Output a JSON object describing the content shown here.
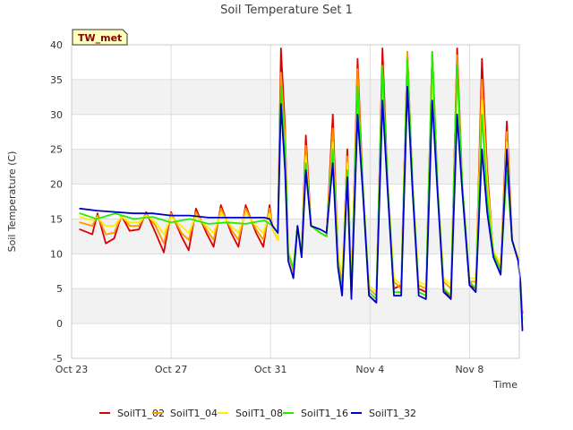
{
  "chart_data": {
    "type": "line",
    "title": "Soil Temperature Set 1",
    "xlabel": "Time",
    "ylabel": "Soil Temperature (C)",
    "ylim": [
      -5,
      40
    ],
    "yticks": [
      -5,
      0,
      5,
      10,
      15,
      20,
      25,
      30,
      35,
      40
    ],
    "xlim": [
      "2023-10-23",
      "2023-11-10"
    ],
    "xticks": [
      {
        "date": "2023-10-23",
        "label": "Oct 23"
      },
      {
        "date": "2023-10-27",
        "label": "Oct 27"
      },
      {
        "date": "2023-10-31",
        "label": "Oct 31"
      },
      {
        "date": "2023-11-04",
        "label": "Nov 4"
      },
      {
        "date": "2023-11-08",
        "label": "Nov 8"
      }
    ],
    "grid": true,
    "banded_background": true,
    "legend_position": "bottom",
    "annotation": "TW_met",
    "series": [
      {
        "name": "SoilT1_02",
        "color": "#dd0000",
        "x": [
          "2023-10-23T08:00",
          "2023-10-23T20:00",
          "2023-10-24T01:00",
          "2023-10-24T09:00",
          "2023-10-24T17:00",
          "2023-10-25T00:00",
          "2023-10-25T08:00",
          "2023-10-25T17:00",
          "2023-10-26T00:00",
          "2023-10-26T09:00",
          "2023-10-26T17:00",
          "2023-10-27T00:00",
          "2023-10-27T10:00",
          "2023-10-27T17:00",
          "2023-10-28T00:00",
          "2023-10-28T10:00",
          "2023-10-28T17:00",
          "2023-10-29T00:00",
          "2023-10-29T10:00",
          "2023-10-29T17:00",
          "2023-10-30T00:00",
          "2023-10-30T10:00",
          "2023-10-30T17:00",
          "2023-10-30T23:00",
          "2023-10-31T02:00",
          "2023-10-31T07:00",
          "2023-10-31T10:00",
          "2023-10-31T14:00",
          "2023-10-31T17:00",
          "2023-10-31T22:00",
          "2023-11-01T02:00",
          "2023-11-01T06:00",
          "2023-11-01T10:00",
          "2023-11-01T15:00",
          "2023-11-02T00:00",
          "2023-11-02T06:00",
          "2023-11-02T12:00",
          "2023-11-02T17:00",
          "2023-11-02T21:00",
          "2023-11-03T02:00",
          "2023-11-03T06:00",
          "2023-11-03T12:00",
          "2023-11-03T17:00",
          "2023-11-03T23:00",
          "2023-11-04T06:00",
          "2023-11-04T12:00",
          "2023-11-04T17:00",
          "2023-11-04T23:00",
          "2023-11-05T06:00",
          "2023-11-05T12:00",
          "2023-11-05T17:00",
          "2023-11-05T23:00",
          "2023-11-06T06:00",
          "2023-11-06T12:00",
          "2023-11-06T17:00",
          "2023-11-06T23:00",
          "2023-11-07T06:00",
          "2023-11-07T12:00",
          "2023-11-07T17:00",
          "2023-11-08T00:00",
          "2023-11-08T06:00",
          "2023-11-08T12:00",
          "2023-11-08T17:00",
          "2023-11-08T23:00",
          "2023-11-09T06:00",
          "2023-11-09T12:00",
          "2023-11-09T17:00",
          "2023-11-09T23:00",
          "2023-11-10T01:00",
          "2023-11-10T03:00"
        ],
        "y": [
          13.5,
          12.8,
          15.8,
          11.5,
          12.2,
          15.5,
          13.3,
          13.5,
          16.0,
          13.0,
          10.2,
          16.0,
          12.5,
          10.5,
          16.5,
          13.0,
          11.0,
          17.0,
          13.0,
          11.0,
          17.0,
          13.0,
          11.0,
          17.0,
          13.5,
          12.0,
          39.5,
          28.0,
          10.0,
          7.5,
          14.0,
          10.0,
          27.0,
          14.0,
          13.0,
          12.5,
          30.0,
          10.0,
          5.0,
          25.0,
          4.0,
          38.0,
          20.0,
          4.0,
          3.0,
          39.5,
          20.0,
          5.0,
          5.5,
          39.0,
          20.0,
          5.0,
          4.5,
          39.0,
          20.0,
          5.0,
          3.5,
          39.5,
          20.0,
          5.5,
          5.0,
          38.0,
          22.0,
          10.0,
          8.0,
          29.0,
          12.0,
          9.0,
          6.0,
          1.5
        ]
      },
      {
        "name": "SoilT1_04",
        "color": "#ff9900",
        "x": [
          "2023-10-23T08:00",
          "2023-10-23T20:00",
          "2023-10-24T01:00",
          "2023-10-24T09:00",
          "2023-10-24T17:00",
          "2023-10-25T00:00",
          "2023-10-25T08:00",
          "2023-10-25T17:00",
          "2023-10-26T00:00",
          "2023-10-26T09:00",
          "2023-10-26T17:00",
          "2023-10-27T00:00",
          "2023-10-27T10:00",
          "2023-10-27T17:00",
          "2023-10-28T00:00",
          "2023-10-28T10:00",
          "2023-10-28T17:00",
          "2023-10-29T00:00",
          "2023-10-29T10:00",
          "2023-10-29T17:00",
          "2023-10-30T00:00",
          "2023-10-30T10:00",
          "2023-10-30T17:00",
          "2023-10-30T23:00",
          "2023-10-31T02:00",
          "2023-10-31T07:00",
          "2023-10-31T10:00",
          "2023-10-31T14:00",
          "2023-10-31T17:00",
          "2023-10-31T22:00",
          "2023-11-01T02:00",
          "2023-11-01T06:00",
          "2023-11-01T10:00",
          "2023-11-01T15:00",
          "2023-11-02T00:00",
          "2023-11-02T06:00",
          "2023-11-02T12:00",
          "2023-11-02T17:00",
          "2023-11-02T21:00",
          "2023-11-03T02:00",
          "2023-11-03T06:00",
          "2023-11-03T12:00",
          "2023-11-03T17:00",
          "2023-11-03T23:00",
          "2023-11-04T06:00",
          "2023-11-04T12:00",
          "2023-11-04T17:00",
          "2023-11-04T23:00",
          "2023-11-05T06:00",
          "2023-11-05T12:00",
          "2023-11-05T17:00",
          "2023-11-05T23:00",
          "2023-11-06T06:00",
          "2023-11-06T12:00",
          "2023-11-06T17:00",
          "2023-11-06T23:00",
          "2023-11-07T06:00",
          "2023-11-07T12:00",
          "2023-11-07T17:00",
          "2023-11-08T00:00",
          "2023-11-08T06:00",
          "2023-11-08T12:00",
          "2023-11-08T17:00",
          "2023-11-08T23:00",
          "2023-11-09T06:00",
          "2023-11-09T12:00",
          "2023-11-09T17:00",
          "2023-11-09T23:00",
          "2023-11-10T01:00",
          "2023-11-10T03:00"
        ],
        "y": [
          14.5,
          14.0,
          15.5,
          12.8,
          13.0,
          15.5,
          14.0,
          14.0,
          15.8,
          14.0,
          11.5,
          15.8,
          13.0,
          12.0,
          16.0,
          13.5,
          12.0,
          16.5,
          13.5,
          12.0,
          16.5,
          13.5,
          12.0,
          16.5,
          13.5,
          12.0,
          36.0,
          27.0,
          10.0,
          7.5,
          14.0,
          10.0,
          25.5,
          14.0,
          13.0,
          12.5,
          28.0,
          10.0,
          6.0,
          24.0,
          5.0,
          36.5,
          20.0,
          5.0,
          4.0,
          37.0,
          20.0,
          6.0,
          5.0,
          39.0,
          20.0,
          5.5,
          5.0,
          39.0,
          20.0,
          6.0,
          5.0,
          38.5,
          20.0,
          6.0,
          6.0,
          35.0,
          21.0,
          10.0,
          8.0,
          27.5,
          12.0,
          9.0,
          6.0,
          2.0
        ]
      },
      {
        "name": "SoilT1_08",
        "color": "#ffee00",
        "x": [
          "2023-10-23T08:00",
          "2023-10-23T20:00",
          "2023-10-24T01:00",
          "2023-10-24T09:00",
          "2023-10-24T17:00",
          "2023-10-25T00:00",
          "2023-10-25T08:00",
          "2023-10-25T17:00",
          "2023-10-26T00:00",
          "2023-10-26T09:00",
          "2023-10-26T17:00",
          "2023-10-27T00:00",
          "2023-10-27T10:00",
          "2023-10-27T17:00",
          "2023-10-28T00:00",
          "2023-10-28T10:00",
          "2023-10-28T17:00",
          "2023-10-29T00:00",
          "2023-10-29T10:00",
          "2023-10-29T17:00",
          "2023-10-30T00:00",
          "2023-10-30T10:00",
          "2023-10-30T17:00",
          "2023-10-30T23:00",
          "2023-10-31T02:00",
          "2023-10-31T07:00",
          "2023-10-31T10:00",
          "2023-10-31T14:00",
          "2023-10-31T17:00",
          "2023-10-31T22:00",
          "2023-11-01T02:00",
          "2023-11-01T06:00",
          "2023-11-01T10:00",
          "2023-11-01T15:00",
          "2023-11-02T00:00",
          "2023-11-02T06:00",
          "2023-11-02T12:00",
          "2023-11-02T17:00",
          "2023-11-02T21:00",
          "2023-11-03T02:00",
          "2023-11-03T06:00",
          "2023-11-03T12:00",
          "2023-11-03T17:00",
          "2023-11-03T23:00",
          "2023-11-04T06:00",
          "2023-11-04T12:00",
          "2023-11-04T17:00",
          "2023-11-04T23:00",
          "2023-11-05T06:00",
          "2023-11-05T12:00",
          "2023-11-05T17:00",
          "2023-11-05T23:00",
          "2023-11-06T06:00",
          "2023-11-06T12:00",
          "2023-11-06T17:00",
          "2023-11-06T23:00",
          "2023-11-07T06:00",
          "2023-11-07T12:00",
          "2023-11-07T17:00",
          "2023-11-08T00:00",
          "2023-11-08T06:00",
          "2023-11-08T12:00",
          "2023-11-08T17:00",
          "2023-11-08T23:00",
          "2023-11-09T06:00",
          "2023-11-09T12:00",
          "2023-11-09T17:00",
          "2023-11-09T23:00",
          "2023-11-10T01:00",
          "2023-11-10T03:00"
        ],
        "y": [
          15.3,
          14.8,
          15.2,
          14.0,
          14.0,
          15.3,
          14.5,
          14.5,
          15.5,
          14.5,
          12.8,
          15.3,
          14.0,
          13.0,
          15.5,
          14.0,
          13.0,
          15.8,
          14.0,
          13.0,
          15.8,
          14.0,
          13.0,
          15.8,
          13.5,
          12.0,
          33.0,
          26.0,
          10.5,
          8.0,
          14.0,
          10.0,
          24.0,
          14.0,
          13.0,
          12.5,
          26.0,
          10.0,
          7.0,
          23.0,
          6.0,
          33.0,
          20.0,
          5.5,
          4.5,
          35.0,
          20.0,
          6.5,
          5.5,
          38.0,
          20.0,
          6.0,
          5.5,
          36.0,
          20.0,
          6.5,
          5.5,
          36.0,
          20.0,
          6.5,
          6.5,
          32.0,
          20.0,
          10.5,
          8.5,
          26.0,
          12.0,
          9.5,
          6.0,
          2.0
        ]
      },
      {
        "name": "SoilT1_16",
        "color": "#22ee00",
        "x": [
          "2023-10-23T08:00",
          "2023-10-24T00:00",
          "2023-10-24T18:00",
          "2023-10-25T12:00",
          "2023-10-26T06:00",
          "2023-10-27T00:00",
          "2023-10-27T18:00",
          "2023-10-28T12:00",
          "2023-10-29T06:00",
          "2023-10-30T00:00",
          "2023-10-30T18:00",
          "2023-10-30T23:00",
          "2023-10-31T02:00",
          "2023-10-31T07:00",
          "2023-10-31T10:00",
          "2023-10-31T14:00",
          "2023-10-31T17:00",
          "2023-10-31T22:00",
          "2023-11-01T02:00",
          "2023-11-01T06:00",
          "2023-11-01T10:00",
          "2023-11-01T15:00",
          "2023-11-02T00:00",
          "2023-11-02T06:00",
          "2023-11-02T12:00",
          "2023-11-02T17:00",
          "2023-11-02T21:00",
          "2023-11-03T02:00",
          "2023-11-03T06:00",
          "2023-11-03T12:00",
          "2023-11-03T17:00",
          "2023-11-03T23:00",
          "2023-11-04T06:00",
          "2023-11-04T12:00",
          "2023-11-04T17:00",
          "2023-11-04T23:00",
          "2023-11-05T06:00",
          "2023-11-05T12:00",
          "2023-11-05T17:00",
          "2023-11-05T23:00",
          "2023-11-06T06:00",
          "2023-11-06T12:00",
          "2023-11-06T17:00",
          "2023-11-06T23:00",
          "2023-11-07T06:00",
          "2023-11-07T12:00",
          "2023-11-07T17:00",
          "2023-11-08T00:00",
          "2023-11-08T06:00",
          "2023-11-08T12:00",
          "2023-11-08T17:00",
          "2023-11-08T23:00",
          "2023-11-09T06:00",
          "2023-11-09T12:00",
          "2023-11-09T17:00",
          "2023-11-09T23:00",
          "2023-11-10T01:00",
          "2023-11-10T03:00"
        ],
        "y": [
          15.8,
          15.0,
          15.8,
          15.0,
          15.3,
          14.5,
          15.0,
          14.3,
          14.5,
          14.3,
          14.8,
          14.3,
          14.0,
          13.0,
          34.0,
          25.0,
          10.0,
          8.0,
          14.0,
          10.0,
          23.0,
          14.0,
          13.0,
          12.5,
          25.0,
          8.5,
          4.5,
          22.0,
          4.0,
          34.0,
          20.0,
          4.5,
          3.5,
          37.0,
          20.0,
          4.5,
          4.5,
          38.0,
          20.0,
          4.5,
          4.0,
          39.0,
          20.0,
          5.0,
          4.0,
          37.0,
          20.0,
          6.0,
          5.0,
          30.0,
          18.0,
          10.0,
          7.5,
          22.0,
          12.0,
          9.0,
          6.0,
          0.5
        ]
      },
      {
        "name": "SoilT1_32",
        "color": "#0000cc",
        "x": [
          "2023-10-23T08:00",
          "2023-10-24T00:00",
          "2023-10-24T18:00",
          "2023-10-25T12:00",
          "2023-10-26T06:00",
          "2023-10-27T00:00",
          "2023-10-27T18:00",
          "2023-10-28T12:00",
          "2023-10-29T06:00",
          "2023-10-30T00:00",
          "2023-10-30T18:00",
          "2023-10-30T23:00",
          "2023-10-31T02:00",
          "2023-10-31T07:00",
          "2023-10-31T10:00",
          "2023-10-31T14:00",
          "2023-10-31T17:00",
          "2023-10-31T22:00",
          "2023-11-01T02:00",
          "2023-11-01T06:00",
          "2023-11-01T10:00",
          "2023-11-01T15:00",
          "2023-11-02T00:00",
          "2023-11-02T06:00",
          "2023-11-02T12:00",
          "2023-11-02T17:00",
          "2023-11-02T21:00",
          "2023-11-03T02:00",
          "2023-11-03T06:00",
          "2023-11-03T12:00",
          "2023-11-03T17:00",
          "2023-11-03T23:00",
          "2023-11-04T06:00",
          "2023-11-04T12:00",
          "2023-11-04T17:00",
          "2023-11-04T23:00",
          "2023-11-05T06:00",
          "2023-11-05T12:00",
          "2023-11-05T17:00",
          "2023-11-05T23:00",
          "2023-11-06T06:00",
          "2023-11-06T12:00",
          "2023-11-06T17:00",
          "2023-11-06T23:00",
          "2023-11-07T06:00",
          "2023-11-07T12:00",
          "2023-11-07T17:00",
          "2023-11-08T00:00",
          "2023-11-08T06:00",
          "2023-11-08T12:00",
          "2023-11-08T17:00",
          "2023-11-08T23:00",
          "2023-11-09T06:00",
          "2023-11-09T12:00",
          "2023-11-09T17:00",
          "2023-11-09T23:00",
          "2023-11-10T01:00",
          "2023-11-10T03:00"
        ],
        "y": [
          16.5,
          16.2,
          16.0,
          15.8,
          15.8,
          15.5,
          15.5,
          15.2,
          15.2,
          15.2,
          15.2,
          15.0,
          14.0,
          13.0,
          31.5,
          22.0,
          9.0,
          6.5,
          14.0,
          9.5,
          22.0,
          14.0,
          13.5,
          13.0,
          23.0,
          8.0,
          4.0,
          21.0,
          3.5,
          30.0,
          19.0,
          4.0,
          3.0,
          32.0,
          19.0,
          4.0,
          4.0,
          34.0,
          19.0,
          4.0,
          3.5,
          32.0,
          19.0,
          4.5,
          3.5,
          30.0,
          19.0,
          5.5,
          4.5,
          25.0,
          16.0,
          9.5,
          7.0,
          25.0,
          12.0,
          9.0,
          6.0,
          -1.0
        ]
      }
    ]
  }
}
